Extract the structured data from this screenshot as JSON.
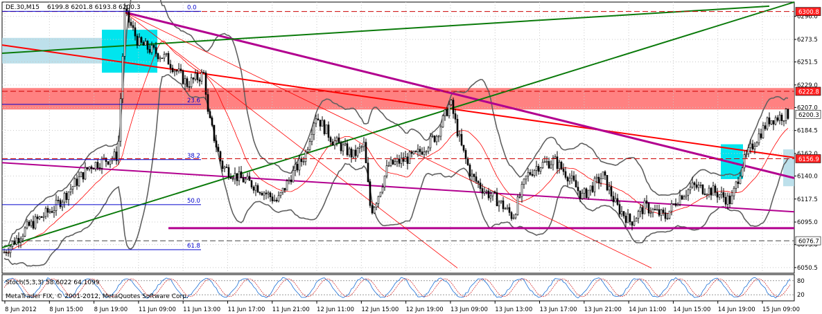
{
  "header": {
    "symbol": "DE.30,M15",
    "ohlc": "6199.8 6201.8 6193.8 6200.3"
  },
  "stoch_label": "Stoch(5,3,3) 58.6022 64.1099",
  "copyright": "MetaTrader FIX, © 2001-2012, MetaQuotes Software Corp.",
  "chart_data": {
    "type": "candlestick",
    "y_range": [
      6045,
      6310
    ],
    "y_ticks": [
      "6296.0",
      "6273.5",
      "6251.5",
      "6229.0",
      "6207.0",
      "6184.5",
      "6162.0",
      "6140.0",
      "6117.5",
      "6095.0",
      "6073.0",
      "6050.5"
    ],
    "x_labels": [
      "8 Jun 2012",
      "8 Jun 15:00",
      "8 Jun 19:00",
      "11 Jun 09:00",
      "11 Jun 13:00",
      "11 Jun 17:00",
      "11 Jun 21:00",
      "12 Jun 11:00",
      "12 Jun 15:00",
      "12 Jun 19:00",
      "13 Jun 09:00",
      "13 Jun 13:00",
      "13 Jun 17:00",
      "13 Jun 21:00",
      "14 Jun 11:00",
      "14 Jun 15:00",
      "14 Jun 19:00",
      "15 Jun 09:00"
    ],
    "price_tags": [
      {
        "text": "6300.8",
        "value": 6300.8,
        "bg": "#ff2020",
        "fg": "#ffffff"
      },
      {
        "text": "6222.8",
        "value": 6222.8,
        "bg": "#ff2020",
        "fg": "#ffffff"
      },
      {
        "text": "6200.3",
        "value": 6200.3,
        "bg": "#ffffff",
        "fg": "#000000"
      },
      {
        "text": "6156.9",
        "value": 6156.9,
        "bg": "#ff2020",
        "fg": "#ffffff"
      },
      {
        "text": "6076.7",
        "value": 6076.7,
        "bg": "#ffffff",
        "fg": "#000000"
      }
    ],
    "horizontal_levels": [
      6300.8,
      6222.8,
      6156.9,
      6076.7
    ],
    "fibonacci_labels": [
      "0.0",
      "23.6",
      "38.2",
      "50.0",
      "61.8"
    ],
    "fibonacci_values": [
      6301,
      6210,
      6156,
      6112,
      6068
    ],
    "stoch_scale": [
      "80",
      "20"
    ],
    "colors": {
      "resistance_zone": "#ff6b6b",
      "support_zone": "#add8e6",
      "highlight_box": "#00e5ee",
      "trend_red": "#ff0000",
      "trend_magenta": "#b2008f",
      "trend_green": "#0a7a0a",
      "bollinger": "#606060"
    }
  }
}
